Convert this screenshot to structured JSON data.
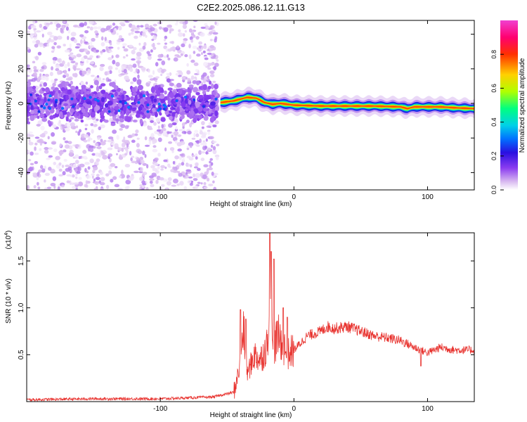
{
  "title": "C2E2.2025.086.12.11.G13",
  "chart_data": [
    {
      "type": "heatmap",
      "xlabel": "Height of straight line (km)",
      "ylabel": "Frequency (Hz)",
      "xlim": [
        -200,
        135
      ],
      "ylim": [
        -50,
        48
      ],
      "xticks": [
        -100,
        0,
        100
      ],
      "xtick_labels": [
        "-100",
        "0",
        "100"
      ],
      "yticks": [
        -40,
        -20,
        0,
        20,
        40
      ],
      "ytick_labels": [
        "-40",
        "-20",
        "0",
        "20",
        "40"
      ],
      "grid": false,
      "colorbar": {
        "label": "Normalized spectral amplitude",
        "range": [
          0,
          1
        ],
        "ticks": [
          0.0,
          0.2,
          0.4,
          0.6,
          0.8
        ],
        "tick_labels": [
          "0.0",
          "0.2",
          "0.4",
          "0.6",
          "0.8"
        ],
        "colors": [
          "#ffffff",
          "#d8b8f0",
          "#8a3cf0",
          "#2a10e0",
          "#0070ff",
          "#00d0e8",
          "#00ff80",
          "#b0ff00",
          "#ffd000",
          "#ff3000",
          "#ff0070",
          "#f040d0"
        ]
      },
      "ridge": {
        "x": [
          -55,
          -45,
          -35,
          -28,
          -22,
          -16,
          -10,
          -5,
          0,
          20,
          40,
          60,
          80,
          85,
          90,
          100,
          110,
          120,
          135
        ],
        "freq": [
          0.5,
          1.5,
          3.5,
          3.0,
          0.5,
          -0.5,
          0.0,
          -0.5,
          -1.0,
          -1.5,
          -1.5,
          -1.5,
          -2.0,
          -3.0,
          -2.0,
          -2.0,
          -2.0,
          -2.5,
          -3.0
        ]
      }
    },
    {
      "type": "line",
      "xlabel": "Height of straight line (km)",
      "ylabel": "SNR (10 * v/v)",
      "y_multiplier": "(x10",
      "y_multiplier_exp": "4",
      "y_multiplier_close": ")",
      "xlim": [
        -200,
        135
      ],
      "ylim": [
        0,
        1.8
      ],
      "xticks": [
        -100,
        0,
        100
      ],
      "xtick_labels": [
        "-100",
        "0",
        "100"
      ],
      "yticks": [
        0.5,
        1.0,
        1.5
      ],
      "ytick_labels": [
        "0.5",
        "1.0",
        "1.5"
      ],
      "grid": false,
      "series": [
        {
          "color": "#e8332f",
          "x": [
            -200,
            -150,
            -100,
            -60,
            -45,
            -40,
            -38,
            -35,
            -32,
            -30,
            -25,
            -20,
            -18,
            -16,
            -12,
            -8,
            -5,
            0,
            10,
            20,
            25,
            30,
            40,
            50,
            60,
            70,
            80,
            90,
            95,
            100,
            110,
            120,
            130,
            135
          ],
          "y": [
            0.02,
            0.03,
            0.03,
            0.05,
            0.1,
            0.4,
            0.8,
            0.3,
            0.4,
            0.5,
            0.45,
            0.6,
            1.2,
            0.55,
            0.7,
            0.6,
            0.5,
            0.55,
            0.7,
            0.75,
            0.8,
            0.78,
            0.8,
            0.75,
            0.7,
            0.68,
            0.65,
            0.58,
            0.55,
            0.52,
            0.58,
            0.55,
            0.55,
            0.55
          ],
          "peaks": [
            {
              "x": -40,
              "y": 0.98
            },
            {
              "x": -36,
              "y": 0.88
            },
            {
              "x": -18,
              "y": 1.8
            },
            {
              "x": -17,
              "y": 1.6
            },
            {
              "x": -15,
              "y": 1.52
            },
            {
              "x": -8,
              "y": 1.0
            },
            {
              "x": -5,
              "y": 0.9
            },
            {
              "x": 95,
              "y": 0.38
            }
          ]
        }
      ]
    }
  ]
}
